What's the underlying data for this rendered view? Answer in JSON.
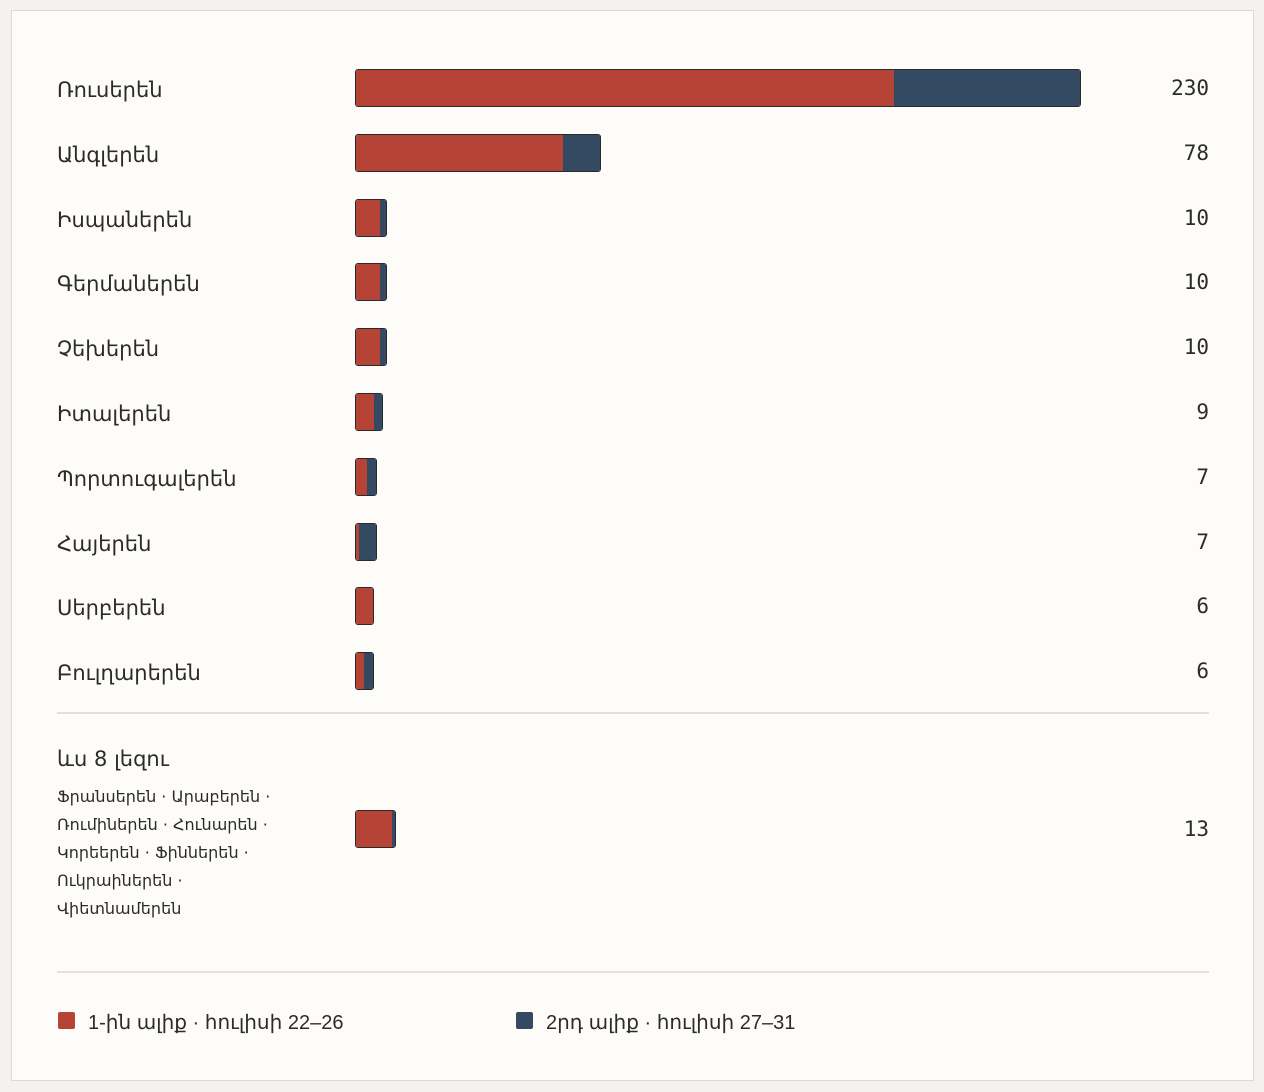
{
  "colors": {
    "wave1": "#b54436",
    "wave2": "#344a62"
  },
  "chart_data": {
    "type": "bar",
    "orientation": "horizontal",
    "stacked": true,
    "categories": [
      "Ռուսերեն",
      "Անգլերեն",
      "Իսպաներեն",
      "Գերմաներեն",
      "Չեխերեն",
      "Իտալերեն",
      "Պորտուգալերեն",
      "Հայերեն",
      "Սերբերեն",
      "Բուլղարերեն"
    ],
    "totals": [
      230,
      78,
      10,
      10,
      10,
      9,
      7,
      7,
      6,
      6
    ],
    "series": [
      {
        "name": "1-ին ալիք · հուլիսի 22–26",
        "values": [
          171,
          66,
          8,
          8,
          8,
          6,
          4,
          1,
          6,
          3
        ]
      },
      {
        "name": "2րդ ալիք · հուլիսի 27–31",
        "values": [
          59,
          12,
          2,
          2,
          2,
          3,
          3,
          6,
          0,
          3
        ]
      }
    ],
    "other": {
      "title": "ևս 8 լեզու",
      "list": "Ֆրանսերեն · Արաբերեն · Ռումիներեն · Հունարեն · Կորեերեն · Ֆիններեն · Ուկրաիներեն · Վիետնամերեն",
      "total": 13,
      "values": [
        12,
        1
      ]
    },
    "xlim": [
      0,
      230
    ],
    "legend": "bottom"
  }
}
